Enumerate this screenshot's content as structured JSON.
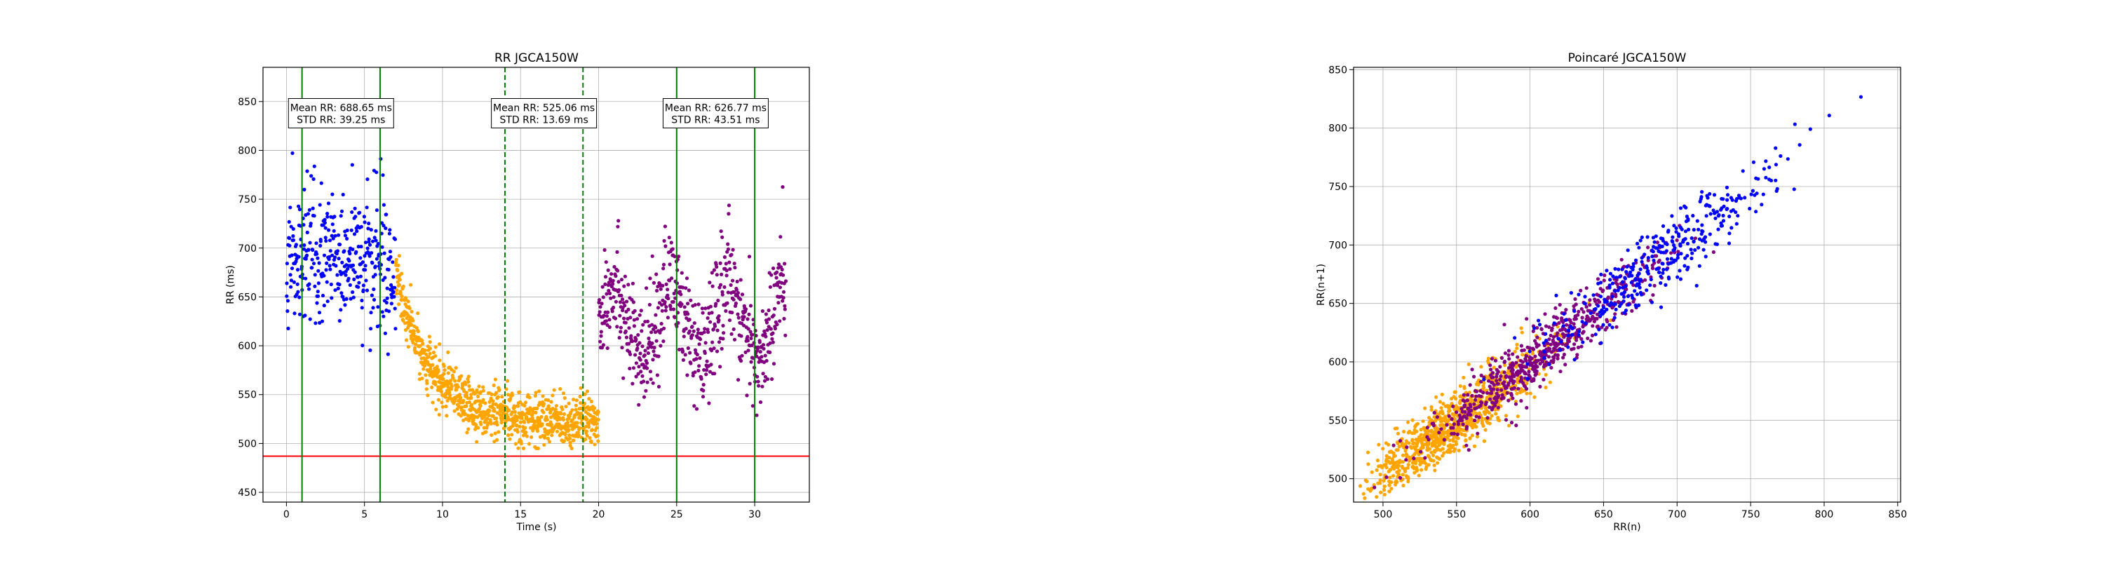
{
  "chart_data": [
    {
      "type": "scatter",
      "title": "RR JGCA150W",
      "xlabel": "Time (s)",
      "ylabel": "RR (ms)",
      "xlim": [
        -1.5,
        33.5
      ],
      "ylim": [
        440,
        885
      ],
      "xticks": [
        0,
        5,
        10,
        15,
        20,
        25,
        30
      ],
      "yticks": [
        450,
        500,
        550,
        600,
        650,
        700,
        750,
        800,
        850
      ],
      "grid": true,
      "colors": {
        "phase1": "#0000ff",
        "phase2": "#ffa500",
        "phase3": "#800080",
        "threshold": "#ff0000",
        "solid_marker": "#008000",
        "dashed_marker": "#008000"
      },
      "threshold_y": 487,
      "vertical_lines": [
        {
          "x": 1,
          "style": "solid"
        },
        {
          "x": 6,
          "style": "solid"
        },
        {
          "x": 14,
          "style": "dashed"
        },
        {
          "x": 19,
          "style": "dashed"
        },
        {
          "x": 25,
          "style": "solid"
        },
        {
          "x": 30,
          "style": "solid"
        }
      ],
      "annotations": [
        {
          "x": 3.5,
          "y": 838,
          "mean": "Mean RR: 688.65 ms",
          "std": "STD RR: 39.25 ms"
        },
        {
          "x": 16.5,
          "y": 838,
          "mean": "Mean RR: 525.06 ms",
          "std": "STD RR: 13.69 ms"
        },
        {
          "x": 27.5,
          "y": 838,
          "mean": "Mean RR: 626.77 ms",
          "std": "STD RR: 43.51 ms"
        }
      ],
      "series": [
        {
          "color": "#0000ff",
          "x_range": [
            0,
            7
          ],
          "approx_mean": 688.65,
          "approx_std": 39.25,
          "count": 360
        },
        {
          "color": "#ffa500",
          "x_range": [
            7,
            20
          ],
          "approx_mean": 525.06,
          "approx_std": 13.69,
          "count": 900
        },
        {
          "color": "#800080",
          "x_range": [
            20,
            32
          ],
          "approx_mean": 626.77,
          "approx_std": 43.51,
          "count": 620
        }
      ]
    },
    {
      "type": "scatter",
      "title": "Poincaré JGCA150W",
      "xlabel": "RR(n)",
      "ylabel": "RR(n+1)",
      "xlim": [
        480,
        852
      ],
      "ylim": [
        480,
        852
      ],
      "xticks": [
        500,
        550,
        600,
        650,
        700,
        750,
        800,
        850
      ],
      "yticks": [
        500,
        550,
        600,
        650,
        700,
        750,
        800,
        850
      ],
      "grid": true,
      "series": [
        {
          "color": "#0000ff",
          "approx_range": [
            545,
            835
          ],
          "count": 360
        },
        {
          "color": "#ffa500",
          "approx_range": [
            485,
            650
          ],
          "count": 900
        },
        {
          "color": "#800080",
          "approx_range": [
            495,
            760
          ],
          "count": 620
        }
      ]
    }
  ]
}
